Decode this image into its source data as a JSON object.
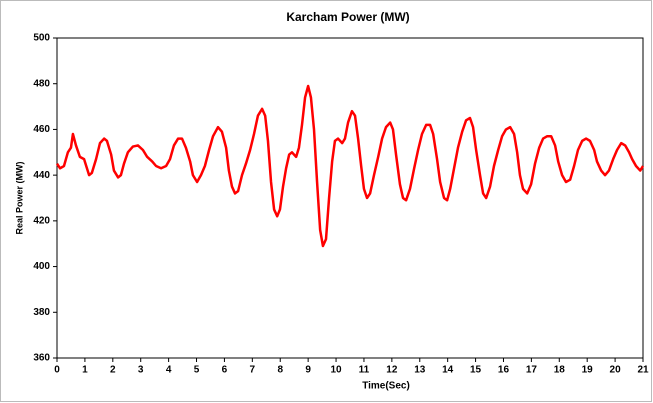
{
  "chart_data": {
    "type": "line",
    "title": "Karcham Power (MW)",
    "xlabel": "Time(Sec)",
    "ylabel": "Real Power (MW)",
    "color": "#ff0000",
    "x": [
      0,
      0.11,
      0.25,
      0.39,
      0.5,
      0.57,
      0.68,
      0.82,
      0.97,
      1.15,
      1.25,
      1.4,
      1.54,
      1.69,
      1.79,
      1.94,
      2.04,
      2.19,
      2.29,
      2.4,
      2.54,
      2.72,
      2.9,
      3.08,
      3.23,
      3.41,
      3.55,
      3.73,
      3.91,
      4.05,
      4.19,
      4.34,
      4.48,
      4.62,
      4.77,
      4.87,
      5.02,
      5.16,
      5.3,
      5.45,
      5.59,
      5.77,
      5.91,
      6.06,
      6.16,
      6.27,
      6.38,
      6.49,
      6.63,
      6.77,
      6.92,
      7.06,
      7.2,
      7.35,
      7.46,
      7.56,
      7.67,
      7.78,
      7.89,
      7.99,
      8.1,
      8.21,
      8.32,
      8.42,
      8.57,
      8.67,
      8.78,
      8.89,
      9.0,
      9.1,
      9.21,
      9.32,
      9.43,
      9.53,
      9.64,
      9.75,
      9.86,
      9.96,
      10.07,
      10.22,
      10.32,
      10.43,
      10.57,
      10.68,
      10.79,
      10.9,
      11.0,
      11.11,
      11.22,
      11.36,
      11.51,
      11.65,
      11.79,
      11.94,
      12.04,
      12.15,
      12.29,
      12.4,
      12.51,
      12.65,
      12.8,
      12.94,
      13.08,
      13.23,
      13.37,
      13.48,
      13.62,
      13.73,
      13.87,
      13.98,
      14.09,
      14.23,
      14.37,
      14.52,
      14.66,
      14.8,
      14.91,
      15.02,
      15.16,
      15.27,
      15.38,
      15.52,
      15.66,
      15.81,
      15.95,
      16.09,
      16.24,
      16.38,
      16.49,
      16.59,
      16.7,
      16.85,
      16.99,
      17.13,
      17.28,
      17.42,
      17.56,
      17.71,
      17.85,
      17.96,
      18.1,
      18.24,
      18.39,
      18.53,
      18.67,
      18.82,
      18.96,
      19.1,
      19.25,
      19.35,
      19.5,
      19.64,
      19.78,
      19.93,
      20.07,
      20.22,
      20.36,
      20.5,
      20.61,
      20.75,
      20.9,
      21
    ],
    "values": [
      445,
      443,
      444,
      450,
      452,
      458,
      453,
      448,
      447,
      440,
      441,
      447,
      454,
      456,
      455,
      449,
      442,
      439,
      440,
      445,
      450,
      452.5,
      453,
      451,
      448,
      446,
      444,
      443,
      444,
      447,
      453,
      456,
      456,
      452,
      446,
      440,
      437,
      440,
      444,
      451,
      457,
      461,
      459,
      452,
      442,
      435,
      432,
      433,
      440,
      445,
      451,
      458,
      466,
      469,
      466,
      455,
      437,
      425,
      422,
      425,
      435,
      443,
      449,
      450,
      448,
      452,
      462,
      474,
      479,
      474,
      460,
      437,
      416,
      409,
      412,
      430,
      446,
      455,
      456,
      454,
      456,
      463,
      468,
      466,
      456,
      444,
      434,
      430,
      432,
      440,
      448,
      456,
      461,
      463,
      460,
      449,
      436,
      430,
      429,
      434,
      443,
      451,
      458,
      462,
      462,
      458,
      447,
      437,
      430,
      429,
      434,
      443,
      452,
      459,
      464,
      465,
      461,
      451,
      440,
      432,
      430,
      435,
      444,
      451,
      457,
      460,
      461,
      458,
      450,
      440,
      434,
      432,
      436,
      445,
      452,
      456,
      457,
      457,
      453,
      446,
      440,
      437,
      438,
      444,
      451,
      455,
      456,
      455,
      451,
      446,
      442,
      440,
      442,
      447,
      451,
      454,
      453,
      450,
      447,
      444,
      442,
      444
    ],
    "xlim": [
      0,
      21
    ],
    "xticks": [
      0,
      1,
      2,
      3,
      4,
      5,
      6,
      7,
      8,
      9,
      10,
      11,
      12,
      13,
      14,
      15,
      16,
      17,
      18,
      19,
      20,
      21
    ],
    "ylim": [
      360,
      500
    ],
    "yticks": [
      360,
      380,
      400,
      420,
      440,
      460,
      480,
      500
    ]
  }
}
